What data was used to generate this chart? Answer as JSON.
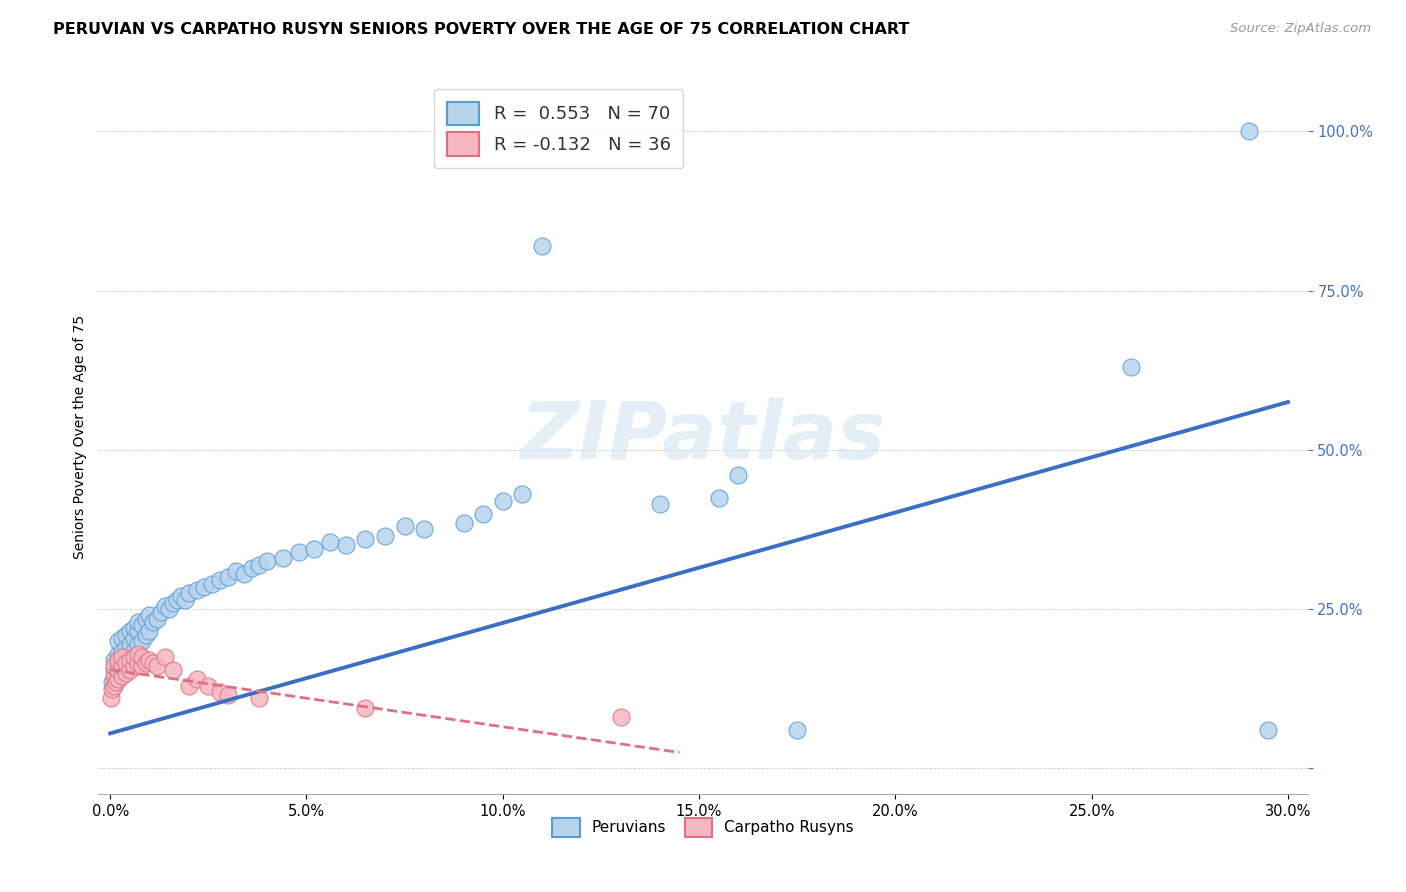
{
  "title": "PERUVIAN VS CARPATHO RUSYN SENIORS POVERTY OVER THE AGE OF 75 CORRELATION CHART",
  "source": "Source: ZipAtlas.com",
  "ylabel": "Seniors Poverty Over the Age of 75",
  "ytick_positions": [
    0.0,
    0.25,
    0.5,
    0.75,
    1.0
  ],
  "ytick_labels": [
    "",
    "25.0%",
    "50.0%",
    "75.0%",
    "100.0%"
  ],
  "xtick_positions": [
    0.0,
    0.05,
    0.1,
    0.15,
    0.2,
    0.25,
    0.3
  ],
  "xtick_labels": [
    "0.0%",
    "5.0%",
    "10.0%",
    "15.0%",
    "20.0%",
    "25.0%",
    "30.0%"
  ],
  "xmin": -0.003,
  "xmax": 0.305,
  "ymin": -0.04,
  "ymax": 1.08,
  "watermark": "ZIPatlas",
  "peruvian_color_edge": "#5b9bd5",
  "peruvian_color_fill": "#b8d4ed",
  "carpatho_color_edge": "#e07080",
  "carpatho_color_fill": "#f4b8c1",
  "blue_line_color": "#3a6fc4",
  "pink_line_color": "#e07080",
  "legend_r1": "R =  0.553   N = 70",
  "legend_r2": "R = -0.132   N = 36",
  "legend_label1": "Peruvians",
  "legend_label2": "Carpatho Rusyns",
  "title_fontsize": 11.5,
  "source_fontsize": 9.5,
  "tick_fontsize": 10.5,
  "ylabel_fontsize": 10,
  "legend_fontsize": 13,
  "peruvian_points_x": [
    0.0005,
    0.001,
    0.001,
    0.0015,
    0.002,
    0.002,
    0.002,
    0.003,
    0.003,
    0.003,
    0.003,
    0.004,
    0.004,
    0.004,
    0.005,
    0.005,
    0.005,
    0.006,
    0.006,
    0.006,
    0.007,
    0.007,
    0.007,
    0.008,
    0.008,
    0.009,
    0.009,
    0.01,
    0.01,
    0.011,
    0.012,
    0.013,
    0.014,
    0.015,
    0.016,
    0.017,
    0.018,
    0.019,
    0.02,
    0.022,
    0.024,
    0.026,
    0.028,
    0.03,
    0.032,
    0.034,
    0.036,
    0.038,
    0.04,
    0.044,
    0.048,
    0.052,
    0.056,
    0.06,
    0.065,
    0.07,
    0.075,
    0.08,
    0.09,
    0.095,
    0.1,
    0.105,
    0.11,
    0.14,
    0.155,
    0.16,
    0.175,
    0.26,
    0.29,
    0.295
  ],
  "peruvian_points_y": [
    0.135,
    0.155,
    0.17,
    0.145,
    0.165,
    0.18,
    0.2,
    0.16,
    0.175,
    0.185,
    0.205,
    0.17,
    0.19,
    0.21,
    0.175,
    0.195,
    0.215,
    0.185,
    0.205,
    0.22,
    0.195,
    0.215,
    0.23,
    0.2,
    0.225,
    0.21,
    0.235,
    0.215,
    0.24,
    0.23,
    0.235,
    0.245,
    0.255,
    0.25,
    0.26,
    0.265,
    0.27,
    0.265,
    0.275,
    0.28,
    0.285,
    0.29,
    0.295,
    0.3,
    0.31,
    0.305,
    0.315,
    0.32,
    0.325,
    0.33,
    0.34,
    0.345,
    0.355,
    0.35,
    0.36,
    0.365,
    0.38,
    0.375,
    0.385,
    0.4,
    0.42,
    0.43,
    0.82,
    0.415,
    0.425,
    0.46,
    0.06,
    0.63,
    1.0,
    0.06
  ],
  "carpatho_points_x": [
    0.0003,
    0.0005,
    0.001,
    0.001,
    0.001,
    0.0015,
    0.002,
    0.002,
    0.002,
    0.003,
    0.003,
    0.003,
    0.004,
    0.004,
    0.005,
    0.005,
    0.006,
    0.006,
    0.007,
    0.007,
    0.008,
    0.008,
    0.009,
    0.01,
    0.011,
    0.012,
    0.014,
    0.016,
    0.02,
    0.022,
    0.025,
    0.028,
    0.03,
    0.038,
    0.065,
    0.13
  ],
  "carpatho_points_y": [
    0.11,
    0.125,
    0.13,
    0.145,
    0.16,
    0.135,
    0.14,
    0.155,
    0.17,
    0.145,
    0.16,
    0.175,
    0.15,
    0.165,
    0.155,
    0.17,
    0.16,
    0.175,
    0.165,
    0.18,
    0.16,
    0.175,
    0.165,
    0.17,
    0.165,
    0.16,
    0.175,
    0.155,
    0.13,
    0.14,
    0.13,
    0.12,
    0.115,
    0.11,
    0.095,
    0.08
  ],
  "blue_trend_x": [
    0.0,
    0.3
  ],
  "blue_trend_y": [
    0.055,
    0.575
  ],
  "pink_trend_x": [
    0.0,
    0.145
  ],
  "pink_trend_y": [
    0.155,
    0.025
  ]
}
